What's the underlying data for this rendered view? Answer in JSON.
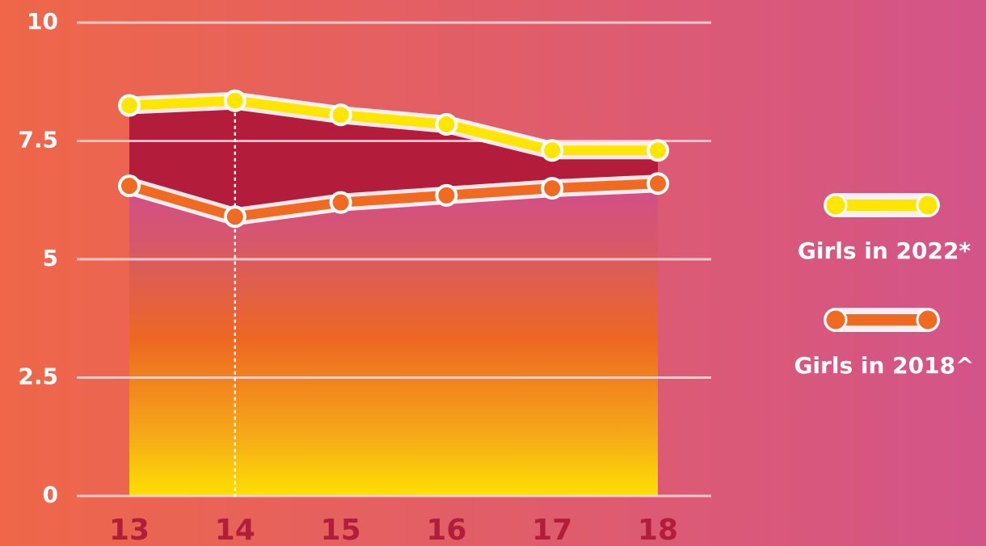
{
  "chart_data": {
    "type": "line",
    "categories": [
      "13",
      "14",
      "15",
      "16",
      "17",
      "18"
    ],
    "series": [
      {
        "name": "Girls in 2022*",
        "color": "#ffe600",
        "values": [
          8.25,
          8.35,
          8.05,
          7.85,
          7.3,
          7.3
        ]
      },
      {
        "name": "Girls in 2018^",
        "color": "#f06a22",
        "values": [
          6.55,
          5.9,
          6.2,
          6.35,
          6.5,
          6.6
        ]
      }
    ],
    "ylim": [
      0,
      10
    ],
    "yticks": [
      0,
      2.5,
      5,
      7.5,
      10
    ],
    "grid": true,
    "legend": "right"
  }
}
